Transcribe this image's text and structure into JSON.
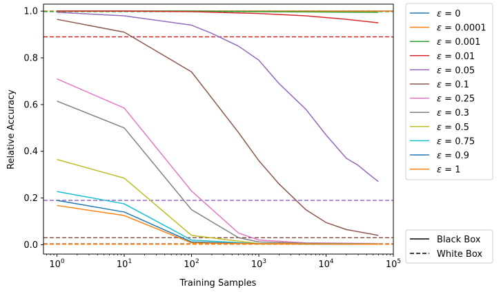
{
  "chart_data": {
    "type": "line",
    "title": "",
    "xlabel": "Training Samples",
    "ylabel": "Relative Accuracy",
    "xscale": "log",
    "xlim": [
      0.63,
      100000
    ],
    "ylim": [
      -0.04,
      1.03
    ],
    "xticks": [
      {
        "value": 1,
        "base": "10",
        "exp": "0"
      },
      {
        "value": 10,
        "base": "10",
        "exp": "1"
      },
      {
        "value": 100,
        "base": "10",
        "exp": "2"
      },
      {
        "value": 1000,
        "base": "10",
        "exp": "3"
      },
      {
        "value": 10000,
        "base": "10",
        "exp": "4"
      },
      {
        "value": 100000,
        "base": "10",
        "exp": "5"
      }
    ],
    "yticks": [
      {
        "value": 0.0,
        "label": "0.0"
      },
      {
        "value": 0.2,
        "label": "0.2"
      },
      {
        "value": 0.4,
        "label": "0.4"
      },
      {
        "value": 0.6,
        "label": "0.6"
      },
      {
        "value": 0.8,
        "label": "0.8"
      },
      {
        "value": 1.0,
        "label": "1.0"
      }
    ],
    "grid": false,
    "legend_position": "outside-right",
    "legend_symbol": "ε",
    "style_legend": [
      {
        "label": "Black Box",
        "style": "solid"
      },
      {
        "label": "White Box",
        "style": "dashed"
      }
    ],
    "series": [
      {
        "name": "ε = 0",
        "eps": "0",
        "color": "#1f77b4",
        "x": [
          1,
          100000
        ],
        "y": [
          1.0,
          1.0
        ],
        "white_box": 1.0
      },
      {
        "name": "ε = 0.0001",
        "eps": "0.0001",
        "color": "#ff7f0e",
        "x": [
          1,
          100000
        ],
        "y": [
          1.0,
          1.0
        ],
        "white_box": 1.0
      },
      {
        "name": "ε = 0.001",
        "eps": "0.001",
        "color": "#2ca02c",
        "x": [
          1,
          10,
          100,
          1000,
          10000,
          60000
        ],
        "y": [
          1.0,
          1.0,
          1.0,
          0.998,
          0.996,
          0.995
        ],
        "white_box": 0.998
      },
      {
        "name": "ε = 0.01",
        "eps": "0.01",
        "color": "#d62728",
        "x": [
          1,
          10,
          100,
          1000,
          5000,
          20000,
          60000
        ],
        "y": [
          1.0,
          1.0,
          0.998,
          0.99,
          0.98,
          0.965,
          0.95
        ],
        "white_box": 0.89
      },
      {
        "name": "ε = 0.05",
        "eps": "0.05",
        "color": "#9467bd",
        "x": [
          1,
          10,
          100,
          200,
          500,
          1000,
          2000,
          5000,
          10000,
          20000,
          30000,
          40000,
          60000
        ],
        "y": [
          0.995,
          0.98,
          0.94,
          0.905,
          0.85,
          0.79,
          0.69,
          0.58,
          0.47,
          0.37,
          0.34,
          0.31,
          0.27
        ],
        "white_box": 0.19
      },
      {
        "name": "ε = 0.1",
        "eps": "0.1",
        "color": "#8c564b",
        "x": [
          1,
          10,
          100,
          500,
          1000,
          2000,
          5000,
          10000,
          20000,
          60000
        ],
        "y": [
          0.965,
          0.91,
          0.74,
          0.48,
          0.36,
          0.26,
          0.15,
          0.095,
          0.065,
          0.04
        ],
        "white_box": 0.03
      },
      {
        "name": "ε = 0.25",
        "eps": "0.25",
        "color": "#e377c2",
        "x": [
          1,
          10,
          100,
          500,
          1000,
          5000,
          60000
        ],
        "y": [
          0.71,
          0.585,
          0.23,
          0.05,
          0.02,
          0.008,
          0.005
        ],
        "white_box": 0.005
      },
      {
        "name": "ε = 0.3",
        "eps": "0.3",
        "color": "#7f7f7f",
        "x": [
          1,
          10,
          100,
          500,
          1000,
          5000,
          60000
        ],
        "y": [
          0.615,
          0.5,
          0.15,
          0.03,
          0.012,
          0.006,
          0.004
        ],
        "white_box": 0.004
      },
      {
        "name": "ε = 0.5",
        "eps": "0.5",
        "color": "#bcbd22",
        "x": [
          1,
          10,
          100,
          1000,
          60000
        ],
        "y": [
          0.365,
          0.285,
          0.04,
          0.005,
          0.003
        ],
        "white_box": 0.003
      },
      {
        "name": "ε = 0.75",
        "eps": "0.75",
        "color": "#17becf",
        "x": [
          1,
          10,
          100,
          1000,
          60000
        ],
        "y": [
          0.228,
          0.175,
          0.02,
          0.004,
          0.002
        ],
        "white_box": 0.002
      },
      {
        "name": "ε = 0.9",
        "eps": "0.9",
        "color": "#1f77b4",
        "x": [
          1,
          10,
          100,
          1000,
          60000
        ],
        "y": [
          0.19,
          0.14,
          0.012,
          0.004,
          0.002
        ],
        "white_box": 0.002
      },
      {
        "name": "ε = 1",
        "eps": "1",
        "color": "#ff7f0e",
        "x": [
          1,
          10,
          100,
          1000,
          60000
        ],
        "y": [
          0.168,
          0.125,
          0.008,
          0.004,
          0.002
        ],
        "white_box": 0.002
      }
    ]
  }
}
